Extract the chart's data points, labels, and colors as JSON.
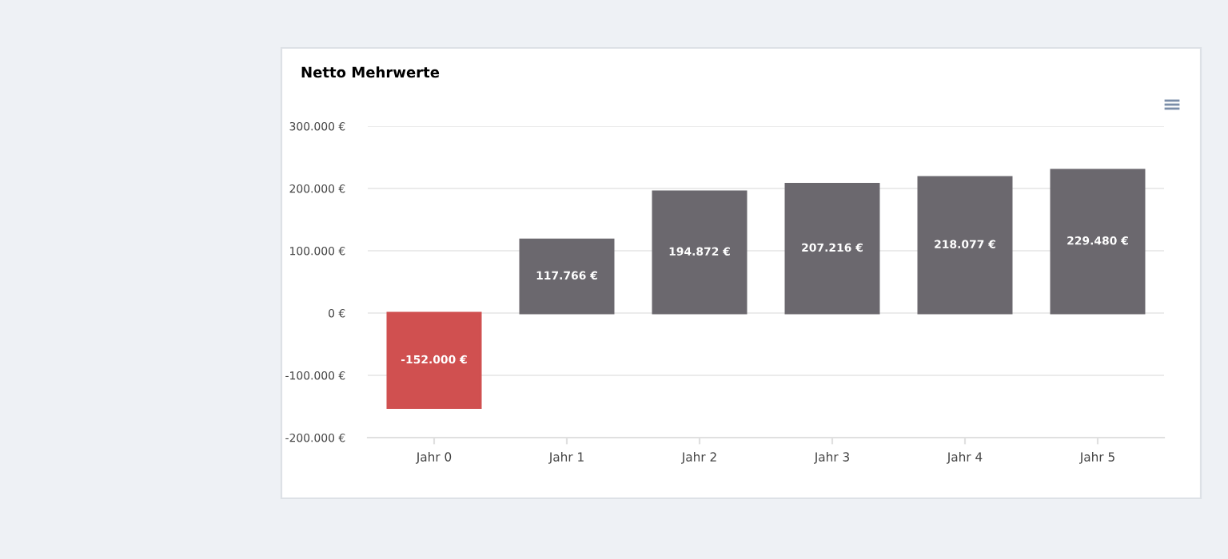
{
  "chart_data": {
    "type": "bar",
    "title": "Netto Mehrwerte",
    "categories": [
      "Jahr 0",
      "Jahr 1",
      "Jahr 2",
      "Jahr 3",
      "Jahr 4",
      "Jahr 5"
    ],
    "values": [
      -152000,
      117766,
      194872,
      207216,
      218077,
      229480
    ],
    "colors": [
      "#d05050",
      "#6b686e",
      "#6b686e",
      "#6b686e",
      "#6b686e",
      "#6b686e"
    ],
    "value_labels": [
      "-152.000 €",
      "117.766 €",
      "194.872 €",
      "207.216 €",
      "218.077 €",
      "229.480 €"
    ],
    "ylim": [
      -200000,
      300000
    ],
    "yticks": [
      {
        "value": -200000,
        "label": "-200.000 €"
      },
      {
        "value": -100000,
        "label": "-100.000 €"
      },
      {
        "value": 0,
        "label": "0 €"
      },
      {
        "value": 100000,
        "label": "100.000 €"
      },
      {
        "value": 200000,
        "label": "200.000 €"
      },
      {
        "value": 300000,
        "label": "300.000 €"
      }
    ],
    "grid": "y"
  }
}
